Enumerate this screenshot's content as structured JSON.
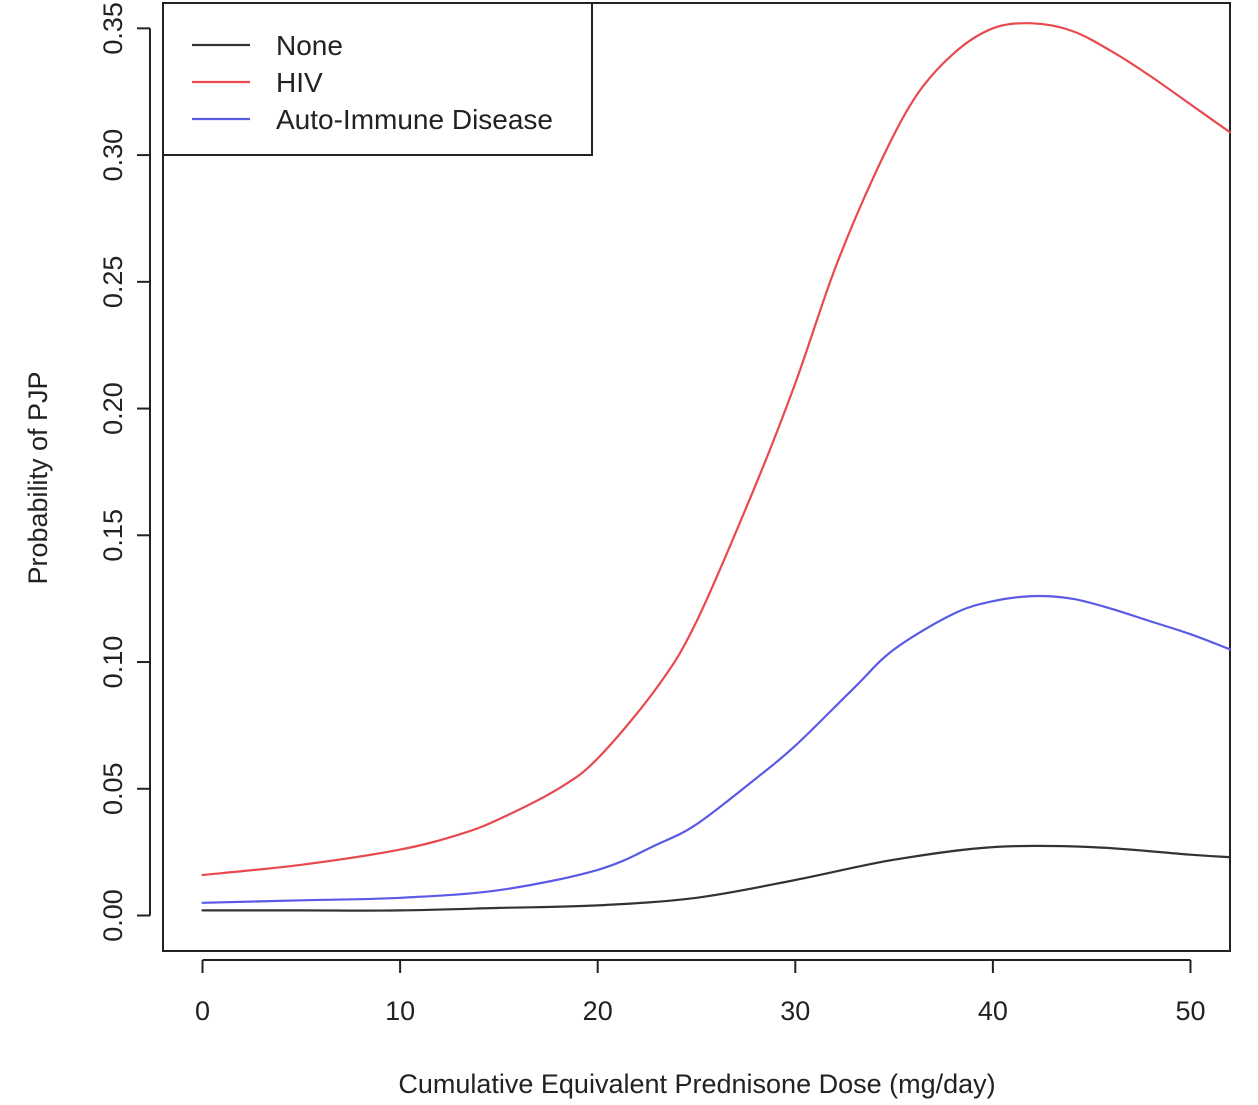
{
  "chart_data": {
    "type": "line",
    "xlabel": "Cumulative Equivalent Prednisone Dose (mg/day)",
    "ylabel": "Probability of PJP",
    "xlim": [
      -2,
      52
    ],
    "ylim": [
      -0.014,
      0.36
    ],
    "x_ticks": [
      0,
      10,
      20,
      30,
      40,
      50
    ],
    "x_tick_labels": [
      "0",
      "10",
      "20",
      "30",
      "40",
      "50"
    ],
    "y_ticks": [
      0.0,
      0.05,
      0.1,
      0.15,
      0.2,
      0.25,
      0.3,
      0.35
    ],
    "y_tick_labels": [
      "0.00",
      "0.05",
      "0.10",
      "0.15",
      "0.20",
      "0.25",
      "0.30",
      "0.35"
    ],
    "legend_position": "top-left",
    "grid": false,
    "series": [
      {
        "name": "None",
        "color": "#333333",
        "x": [
          0,
          5,
          10,
          15,
          20,
          25,
          30,
          35,
          40,
          45,
          50,
          52
        ],
        "y": [
          0.002,
          0.002,
          0.002,
          0.003,
          0.004,
          0.007,
          0.014,
          0.022,
          0.027,
          0.027,
          0.024,
          0.023
        ]
      },
      {
        "name": "HIV",
        "color": "#e8494e",
        "x": [
          0,
          5,
          10,
          13,
          15,
          18,
          20,
          23,
          25,
          28,
          30,
          32,
          34,
          36,
          38,
          40,
          42,
          44,
          46,
          48,
          50,
          52
        ],
        "y": [
          0.016,
          0.02,
          0.026,
          0.032,
          0.038,
          0.05,
          0.062,
          0.09,
          0.116,
          0.17,
          0.21,
          0.255,
          0.292,
          0.322,
          0.34,
          0.35,
          0.352,
          0.349,
          0.341,
          0.331,
          0.32,
          0.309
        ]
      },
      {
        "name": "Auto-Immune Disease",
        "color": "#5a5ae6",
        "x": [
          0,
          5,
          10,
          15,
          20,
          23,
          25,
          28,
          30,
          33,
          35,
          38,
          40,
          42,
          44,
          46,
          48,
          50,
          52
        ],
        "y": [
          0.005,
          0.006,
          0.007,
          0.01,
          0.018,
          0.028,
          0.036,
          0.054,
          0.067,
          0.09,
          0.105,
          0.119,
          0.124,
          0.126,
          0.125,
          0.121,
          0.116,
          0.111,
          0.105
        ]
      }
    ]
  }
}
